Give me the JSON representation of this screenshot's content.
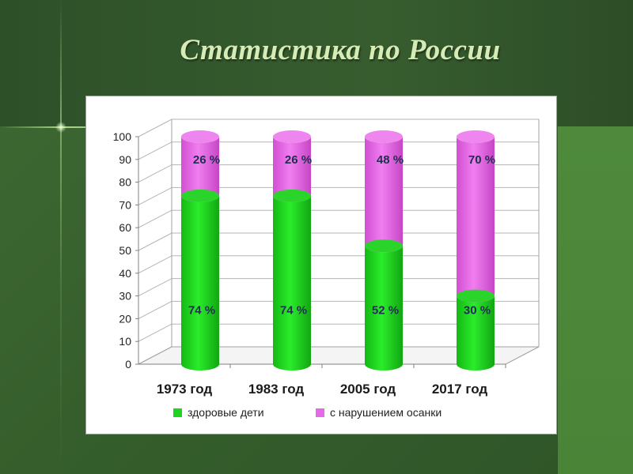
{
  "slide": {
    "title": "Статистика по России"
  },
  "colors": {
    "healthy": "#1fd41f",
    "posture": "#e66ae6"
  },
  "chart_data": {
    "type": "bar",
    "stacked": true,
    "three_d": true,
    "categories": [
      "1973 год",
      "1983 год",
      "2005 год",
      "2017 год"
    ],
    "series": [
      {
        "name": "здоровые дети",
        "values": [
          74,
          74,
          52,
          30
        ],
        "labels": [
          "74 %",
          "74 %",
          "52 %",
          "30 %"
        ]
      },
      {
        "name": "с нарушением осанки",
        "values": [
          26,
          26,
          48,
          70
        ],
        "labels": [
          "26 %",
          "26 %",
          "48 %",
          "70 %"
        ]
      }
    ],
    "yticks": [
      "0",
      "10",
      "20",
      "30",
      "40",
      "50",
      "60",
      "70",
      "80",
      "90",
      "100"
    ],
    "ylim": [
      0,
      100
    ],
    "grid": true,
    "legend": "bottom"
  }
}
